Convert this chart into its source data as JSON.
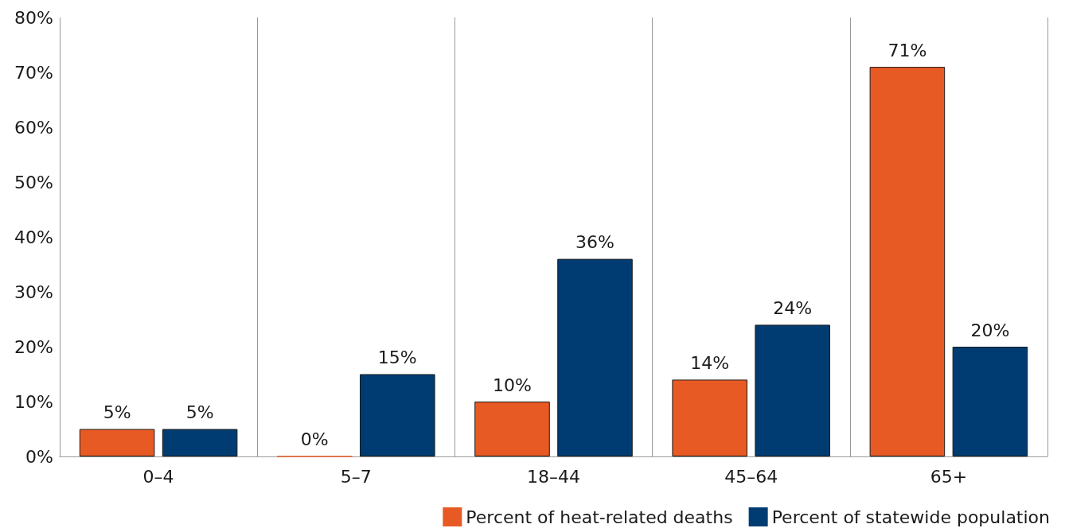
{
  "chart_data": {
    "type": "bar",
    "categories": [
      "0–4",
      "5–7",
      "18–44",
      "45–64",
      "65+"
    ],
    "series": [
      {
        "name": "Percent of heat-related deaths",
        "color": "#e85a24",
        "values": [
          5,
          0,
          10,
          14,
          71
        ],
        "value_labels": [
          "5%",
          "0%",
          "10%",
          "14%",
          "71%"
        ]
      },
      {
        "name": "Percent of statewide population",
        "color": "#003c71",
        "values": [
          5,
          15,
          36,
          24,
          20
        ],
        "value_labels": [
          "5%",
          "15%",
          "36%",
          "24%",
          "20%"
        ]
      }
    ],
    "ylim": [
      0,
      80
    ],
    "yticks": [
      {
        "value": 0,
        "label": "0%"
      },
      {
        "value": 10,
        "label": "10%"
      },
      {
        "value": 20,
        "label": "20%"
      },
      {
        "value": 30,
        "label": "30%"
      },
      {
        "value": 40,
        "label": "40%"
      },
      {
        "value": 50,
        "label": "50%"
      },
      {
        "value": 60,
        "label": "60%"
      },
      {
        "value": 70,
        "label": "70%"
      },
      {
        "value": 80,
        "label": "80%"
      }
    ],
    "grid": "x",
    "legend": "bottom right"
  }
}
